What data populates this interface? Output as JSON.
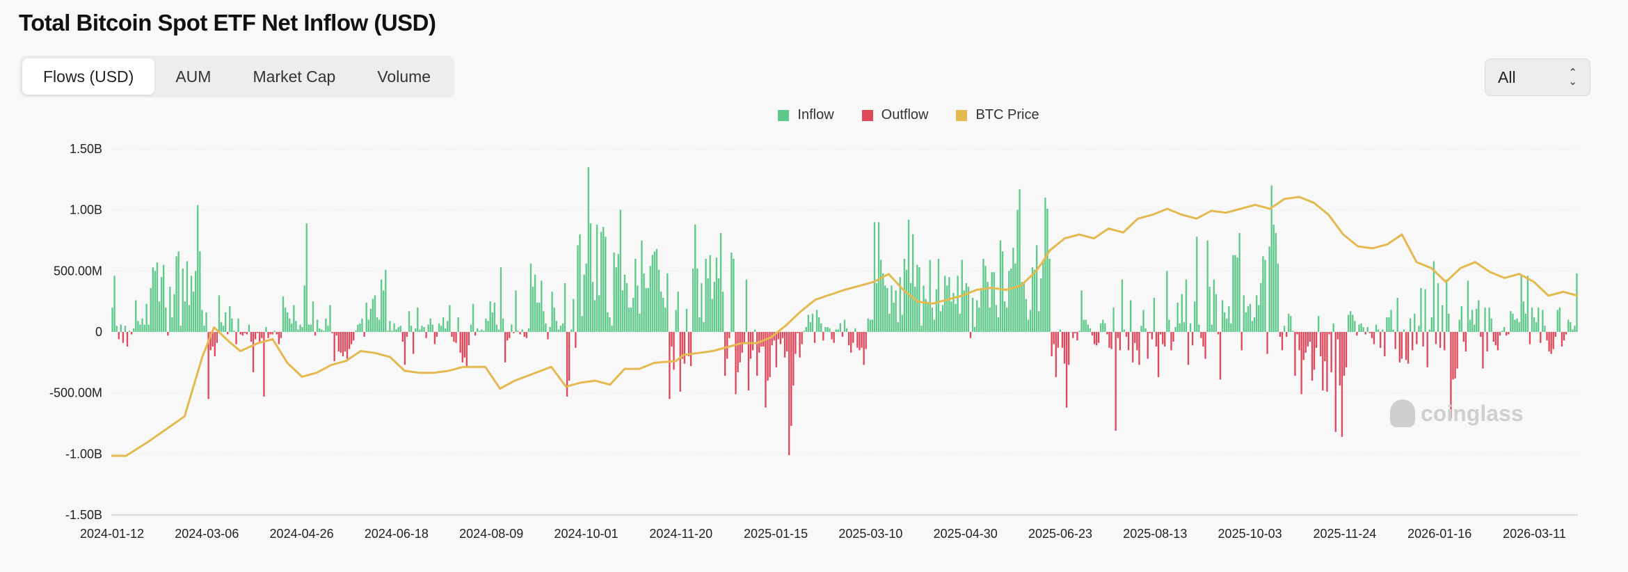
{
  "title": "Total Bitcoin Spot ETF Net Inflow (USD)",
  "tabs": [
    {
      "label": "Flows (USD)",
      "active": true
    },
    {
      "label": "AUM",
      "active": false
    },
    {
      "label": "Market Cap",
      "active": false
    },
    {
      "label": "Volume",
      "active": false
    }
  ],
  "range_select": {
    "value": "All"
  },
  "watermark": "coinglass",
  "chart_data": {
    "type": "bar",
    "legend": [
      {
        "name": "Inflow",
        "color": "#5ec98a"
      },
      {
        "name": "Outflow",
        "color": "#e0475a"
      },
      {
        "name": "BTC Price",
        "color": "#e4b94f"
      }
    ],
    "y_ticks": [
      "1.50B",
      "1.00B",
      "500.00M",
      "0",
      "-500.00M",
      "-1.00B",
      "-1.50B"
    ],
    "ylim": [
      -1.5,
      1.5
    ],
    "y_unit": "B USD",
    "x_ticks": [
      "2024-01-12",
      "2024-03-06",
      "2024-04-26",
      "2024-06-18",
      "2024-08-09",
      "2024-10-01",
      "2024-11-20",
      "2025-01-15",
      "2025-03-10",
      "2025-04-30",
      "2025-06-23",
      "2025-08-13",
      "2025-10-03",
      "2025-11-24",
      "2026-01-16",
      "2026-03-11"
    ],
    "grid": true,
    "flows_b": [
      0.2,
      0.46,
      0.05,
      -0.06,
      0.06,
      -0.09,
      0.05,
      -0.12,
      0.01,
      -0.02,
      0.03,
      0.26,
      0.09,
      0.06,
      0.11,
      0.06,
      0.23,
      0.06,
      0.36,
      0.53,
      0.5,
      0.57,
      0.25,
      0.45,
      0.55,
      0.2,
      -0.03,
      0.37,
      0.12,
      0.31,
      0.62,
      0.66,
      0.05,
      0.52,
      0.25,
      0.58,
      0.22,
      0.46,
      0.33,
      0.5,
      1.04,
      0.66,
      0.18,
      0.05,
      0.16,
      -0.55,
      -0.15,
      -0.12,
      -0.2,
      -0.09,
      0.3,
      0.08,
      0.05,
      0.16,
      -0.02,
      0.21,
      0.11,
      0.01,
      -0.1,
      0.11,
      -0.02,
      -0.03,
      -0.01,
      -0.02,
      0.06,
      -0.08,
      -0.33,
      -0.06,
      -0.01,
      -0.09,
      -0.05,
      -0.53,
      0.04,
      -0.05,
      -0.02,
      -0.02,
      0.01,
      -0.02,
      -0.1,
      -0.05,
      0.29,
      0.2,
      0.16,
      0.11,
      0.07,
      0.22,
      0.09,
      0.02,
      0.06,
      0.04,
      0.38,
      0.89,
      0.06,
      0.06,
      0.25,
      -0.03,
      0.1,
      0.03,
      0.02,
      0.01,
      0.11,
      0.05,
      0.22,
      -0.01,
      -0.24,
      -0.03,
      -0.16,
      -0.17,
      -0.2,
      -0.16,
      -0.22,
      -0.14,
      -0.1,
      -0.07,
      0.01,
      0.06,
      0.07,
      0.11,
      -0.04,
      0.24,
      0.1,
      0.19,
      0.27,
      0.3,
      0.12,
      0.1,
      0.43,
      0.34,
      0.51,
      0.01,
      0.09,
      0.01,
      0.07,
      0.02,
      0.04,
      0.05,
      -0.08,
      -0.27,
      -0.04,
      0.17,
      0.05,
      -0.18,
      0.03,
      0.2,
      0.02,
      0.05,
      0.04,
      -0.05,
      0.06,
      0.11,
      0.06,
      -0.1,
      -0.04,
      0.07,
      0.05,
      0.12,
      0.03,
      0.09,
      0.22,
      -0.04,
      -0.08,
      -0.09,
      0.12,
      -0.17,
      -0.25,
      -0.21,
      -0.29,
      -0.11,
      0.06,
      0.23,
      -0.03,
      0.03,
      0.01,
      0.02,
      0.01,
      0.11,
      0.09,
      0.25,
      0.16,
      0.24,
      0.06,
      0.02,
      0.53,
      0.11,
      -0.25,
      -0.07,
      -0.05,
      0.06,
      -0.01,
      0.34,
      0.01,
      -0.02,
      0.02,
      -0.04,
      -0.05,
      0.03,
      0.56,
      0.37,
      0.47,
      0.24,
      0.24,
      0.42,
      0.17,
      0.07,
      -0.06,
      0.04,
      0.33,
      0.2,
      0.09,
      0.02,
      0.05,
      0.07,
      0.4,
      -0.53,
      -0.4,
      0.02,
      0.27,
      -0.13,
      0.71,
      0.8,
      0.13,
      0.47,
      0.56,
      1.35,
      0.89,
      0.41,
      0.26,
      0.88,
      0.3,
      0.82,
      0.86,
      0.78,
      0.16,
      0.12,
      0.05,
      0.65,
      0.53,
      0.64,
      1.0,
      0.34,
      0.47,
      0.4,
      0.2,
      0.2,
      0.28,
      0.6,
      0.38,
      0.15,
      0.75,
      0.48,
      0.36,
      0.36,
      0.54,
      0.63,
      0.66,
      0.68,
      0.51,
      0.33,
      0.28,
      0.2,
      0.48,
      -0.55,
      -0.12,
      -0.31,
      0.18,
      0.33,
      -0.49,
      -0.22,
      -0.26,
      0.19,
      -0.2,
      -0.28,
      0.52,
      0.88,
      0.52,
      0.12,
      0.4,
      0.08,
      0.6,
      0.44,
      0.63,
      0.27,
      0.41,
      0.61,
      0.44,
      0.81,
      0.33,
      -0.36,
      -0.22,
      -0.05,
      0.65,
      0.6,
      -0.51,
      -0.33,
      -0.25,
      -0.17,
      -0.09,
      0.43,
      -0.48,
      -0.22,
      -0.15,
      0.02,
      -0.36,
      -0.17,
      -0.12,
      -0.12,
      -0.62,
      -0.4,
      -0.37,
      -0.11,
      -0.07,
      -0.29,
      -0.06,
      -0.1,
      -0.05,
      -0.21,
      -0.16,
      -1.01,
      -0.77,
      -0.44,
      -0.18,
      -0.01,
      -0.21,
      -0.1,
      0.01,
      0.04,
      0.14,
      0.08,
      0.15,
      -0.09,
      0.18,
      0.12,
      0.07,
      -0.07,
      0.04,
      0.04,
      0.03,
      -0.06,
      -0.09,
      0.02,
      0.02,
      0.07,
      -0.04,
      0.1,
      0.03,
      -0.11,
      -0.17,
      -0.09,
      0.03,
      -0.13,
      -0.15,
      -0.13,
      -0.27,
      -0.14,
      0.11,
      0.1,
      0.1,
      0.9,
      0.4,
      0.9,
      0.59,
      0.48,
      0.38,
      0.36,
      0.15,
      0.38,
      0.24,
      0.34,
      0.08,
      0.45,
      0.14,
      0.6,
      0.51,
      0.92,
      0.4,
      0.8,
      0.37,
      0.55,
      0.53,
      0.05,
      0.38,
      0.27,
      0.24,
      0.59,
      0.2,
      0.1,
      0.35,
      0.6,
      0.17,
      0.22,
      0.46,
      0.38,
      0.45,
      0.25,
      0.32,
      0.23,
      0.46,
      0.15,
      0.59,
      0.34,
      0.4,
      0.37,
      -0.05,
      0.28,
      0.04,
      0.26,
      0.2,
      0.34,
      0.6,
      0.54,
      0.41,
      0.2,
      0.49,
      0.49,
      0.22,
      0.12,
      0.75,
      0.66,
      0.25,
      0.2,
      0.5,
      0.52,
      0.69,
      0.56,
      1.0,
      1.17,
      0.41,
      0.4,
      0.27,
      0.1,
      0.18,
      0.53,
      0.51,
      0.71,
      0.17,
      0.44,
      0.59,
      1.1,
      1.01,
      0.6,
      -0.2,
      -0.1,
      -0.37,
      -0.13,
      0.02,
      -0.13,
      -0.26,
      -0.62,
      -0.27,
      0.0,
      -0.05,
      -0.01,
      -0.07,
      0.01,
      0.34,
      0.1,
      0.1,
      0.06,
      0.03,
      -0.03,
      -0.1,
      -0.11,
      -0.09,
      0.07,
      0.1,
      0.07,
      -0.02,
      -0.13,
      -0.14,
      0.2,
      -0.81,
      -0.05,
      -0.15,
      0.43,
      0.02,
      -0.04,
      -0.15,
      0.26,
      -0.25,
      -0.09,
      -0.15,
      -0.27,
      0.05,
      0.18,
      0.03,
      -0.22,
      -0.01,
      -0.06,
      0.28,
      -0.12,
      -0.37,
      -0.02,
      -0.1,
      -0.12,
      0.5,
      0.1,
      -0.15,
      -0.08,
      0.04,
      0.24,
      0.07,
      0.31,
      0.08,
      0.43,
      -0.27,
      0.07,
      -0.11,
      0.25,
      0.78,
      0.06,
      -0.05,
      -0.12,
      -0.22,
      0.75,
      0.37,
      0.06,
      0.43,
      0.31,
      -0.02,
      -0.39,
      0.26,
      0.16,
      0.11,
      0.21,
      0.07,
      0.63,
      0.63,
      0.61,
      0.81,
      -0.15,
      0.3,
      0.16,
      0.21,
      0.23,
      0.09,
      0.12,
      0.3,
      0.22,
      0.4,
      0.62,
      0.59,
      -0.18,
      0.7,
      1.2,
      0.88,
      0.81,
      0.56,
      -0.04,
      -0.15,
      0.05,
      -0.04,
      0.15,
      0.13,
      0.01,
      -0.36,
      -0.02,
      -0.15,
      -0.51,
      -0.23,
      -0.17,
      -0.12,
      -0.08,
      -0.4,
      -0.31,
      -0.13,
      0.13,
      -0.2,
      -0.48,
      -0.24,
      -0.49,
      -0.02,
      -0.33,
      0.07,
      -0.82,
      -0.06,
      -0.44,
      -0.86,
      -0.36,
      -0.29,
      0.14,
      0.17,
      0.14,
      0.09,
      -0.03,
      0.06,
      0.07,
      0.04,
      -0.02,
      0.04,
      -0.01,
      -0.05,
      -0.1,
      0.06,
      0.02,
      -0.13,
      0.02,
      -0.2,
      0.12,
      0.12,
      0.18,
      0.02,
      -0.14,
      0.28,
      -0.25,
      -0.22,
      0.02,
      -0.23,
      -0.26,
      0.11,
      -0.15,
      0.15,
      -0.1,
      0.05,
      0.36,
      -0.12,
      0.35,
      -0.29,
      0.02,
      0.12,
      0.58,
      -0.1,
      0.4,
      -0.13,
      0.22,
      -0.15,
      0.43,
      0.15,
      -0.71,
      -0.39,
      -0.38,
      -0.3,
      0.1,
      0.21,
      -0.08,
      -0.16,
      0.42,
      0.1,
      0.18,
      0.06,
      0.19,
      0.26,
      -0.04,
      -0.3,
      0.2,
      -0.16,
      0.2,
      0.11,
      -0.08,
      -0.11,
      -0.15,
      -0.03,
      0.01,
      0.04,
      -0.03,
      -0.02,
      0.17,
      0.15,
      0.1,
      0.11,
      0.08,
      0.47,
      0.25,
      0.15,
      0.46,
      -0.1,
      0.2,
      0.12,
      0.08,
      0.2,
      -0.09,
      0.18,
      0.05,
      -0.07,
      -0.16,
      -0.18,
      -0.14,
      -0.04,
      0.18,
      0.2,
      -0.12,
      -0.07,
      -0.02,
      0.1,
      0.08,
      0.02,
      0.05,
      0.48
    ],
    "btc_price_path": [
      [
        0,
        0.0
      ],
      [
        0.01,
        0.0
      ],
      [
        0.025,
        0.07
      ],
      [
        0.05,
        0.2
      ],
      [
        0.062,
        0.5
      ],
      [
        0.07,
        0.65
      ],
      [
        0.08,
        0.58
      ],
      [
        0.088,
        0.53
      ],
      [
        0.1,
        0.57
      ],
      [
        0.11,
        0.59
      ],
      [
        0.12,
        0.47
      ],
      [
        0.13,
        0.4
      ],
      [
        0.14,
        0.42
      ],
      [
        0.15,
        0.46
      ],
      [
        0.16,
        0.48
      ],
      [
        0.17,
        0.53
      ],
      [
        0.18,
        0.52
      ],
      [
        0.19,
        0.5
      ],
      [
        0.2,
        0.43
      ],
      [
        0.21,
        0.42
      ],
      [
        0.22,
        0.42
      ],
      [
        0.23,
        0.43
      ],
      [
        0.24,
        0.45
      ],
      [
        0.255,
        0.45
      ],
      [
        0.265,
        0.34
      ],
      [
        0.275,
        0.38
      ],
      [
        0.3,
        0.45
      ],
      [
        0.31,
        0.35
      ],
      [
        0.32,
        0.37
      ],
      [
        0.33,
        0.38
      ],
      [
        0.34,
        0.36
      ],
      [
        0.35,
        0.44
      ],
      [
        0.36,
        0.44
      ],
      [
        0.37,
        0.47
      ],
      [
        0.385,
        0.48
      ],
      [
        0.39,
        0.51
      ],
      [
        0.4,
        0.52
      ],
      [
        0.41,
        0.53
      ],
      [
        0.42,
        0.55
      ],
      [
        0.43,
        0.57
      ],
      [
        0.44,
        0.57
      ],
      [
        0.45,
        0.6
      ],
      [
        0.46,
        0.66
      ],
      [
        0.47,
        0.73
      ],
      [
        0.48,
        0.79
      ],
      [
        0.5,
        0.84
      ],
      [
        0.51,
        0.86
      ],
      [
        0.52,
        0.88
      ],
      [
        0.53,
        0.92
      ],
      [
        0.54,
        0.84
      ],
      [
        0.55,
        0.78
      ],
      [
        0.56,
        0.77
      ],
      [
        0.57,
        0.79
      ],
      [
        0.58,
        0.81
      ],
      [
        0.59,
        0.84
      ],
      [
        0.6,
        0.85
      ],
      [
        0.61,
        0.84
      ],
      [
        0.62,
        0.86
      ],
      [
        0.63,
        0.93
      ],
      [
        0.635,
        0.98
      ],
      [
        0.64,
        1.04
      ],
      [
        0.645,
        1.07
      ],
      [
        0.65,
        1.1
      ],
      [
        0.66,
        1.12
      ],
      [
        0.67,
        1.1
      ],
      [
        0.68,
        1.15
      ],
      [
        0.69,
        1.13
      ],
      [
        0.7,
        1.2
      ],
      [
        0.71,
        1.22
      ],
      [
        0.72,
        1.25
      ],
      [
        0.73,
        1.22
      ],
      [
        0.74,
        1.2
      ],
      [
        0.75,
        1.24
      ],
      [
        0.76,
        1.23
      ],
      [
        0.77,
        1.25
      ],
      [
        0.78,
        1.27
      ],
      [
        0.79,
        1.25
      ],
      [
        0.8,
        1.3
      ],
      [
        0.81,
        1.31
      ],
      [
        0.82,
        1.28
      ],
      [
        0.83,
        1.22
      ],
      [
        0.84,
        1.12
      ],
      [
        0.85,
        1.06
      ],
      [
        0.86,
        1.05
      ],
      [
        0.87,
        1.07
      ],
      [
        0.88,
        1.12
      ],
      [
        0.89,
        0.98
      ],
      [
        0.9,
        0.95
      ],
      [
        0.91,
        0.88
      ],
      [
        0.92,
        0.95
      ],
      [
        0.93,
        0.98
      ],
      [
        0.94,
        0.93
      ],
      [
        0.95,
        0.9
      ],
      [
        0.96,
        0.92
      ],
      [
        0.97,
        0.88
      ],
      [
        0.98,
        0.81
      ],
      [
        0.99,
        0.83
      ],
      [
        1.0,
        0.81
      ]
    ]
  }
}
